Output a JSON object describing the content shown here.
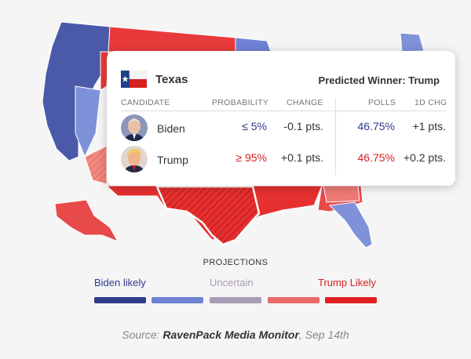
{
  "card": {
    "state": "Texas",
    "predicted_winner": "Predicted Winner: Trump",
    "headers": {
      "candidate": "CANDIDATE",
      "probability": "PROBABILITY",
      "change": "CHANGE",
      "polls": "POLLS",
      "chg1d": "1D CHG"
    },
    "rows": [
      {
        "name": "Biden",
        "probability": "≤ 5%",
        "change": "-0.1 pts.",
        "polls": "46.75%",
        "chg1d": "+1 pts."
      },
      {
        "name": "Trump",
        "probability": "≥ 95%",
        "change": "+0.1 pts.",
        "polls": "46.75%",
        "chg1d": "+0.2 pts."
      }
    ]
  },
  "legend": {
    "title": "PROJECTIONS",
    "labels": {
      "biden_likely": "Biden likely",
      "uncertain": "Uncertain",
      "trump_likely": "Trump Likely"
    },
    "colors": [
      "#2f3d8a",
      "#6f82d4",
      "#a89cb4",
      "#e96a6a",
      "#e02020"
    ]
  },
  "source": {
    "prefix": "Source:",
    "name": "RavenPack Media Monitor",
    "date": ", Sep 14th"
  },
  "colors": {
    "biden": "#2d3a8c",
    "trump": "#d62020"
  }
}
